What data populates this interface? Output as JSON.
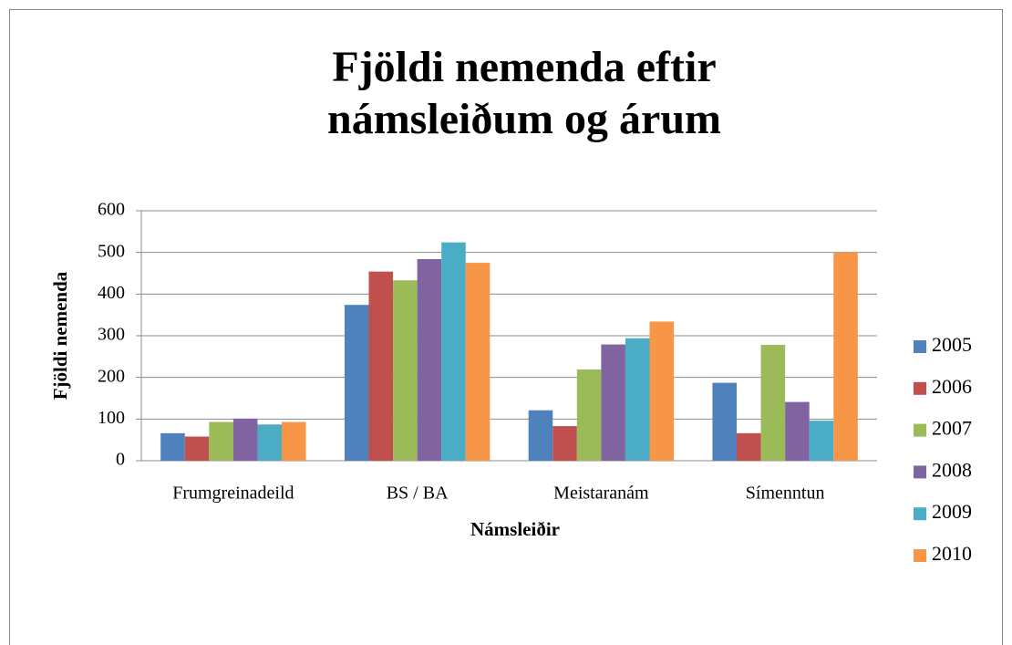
{
  "chart_data": {
    "type": "bar",
    "title": [
      "Fjöldi nemenda eftir",
      "námsleiðum og árum"
    ],
    "x_label": "Námsleiðir",
    "y_label": "Fjöldi nemenda",
    "categories": [
      "Frumgreinadeild",
      "BS / BA",
      "Meistaranám",
      "Símenntun"
    ],
    "series": [
      {
        "name": "2005",
        "color": "#4f81bd",
        "values": [
          66,
          374,
          121,
          187
        ]
      },
      {
        "name": "2006",
        "color": "#c0504d",
        "values": [
          58,
          454,
          83,
          66
        ]
      },
      {
        "name": "2007",
        "color": "#9bbb59",
        "values": [
          93,
          433,
          219,
          278
        ]
      },
      {
        "name": "2008",
        "color": "#8064a2",
        "values": [
          101,
          484,
          279,
          141
        ]
      },
      {
        "name": "2009",
        "color": "#4bacc6",
        "values": [
          87,
          524,
          294,
          96
        ]
      },
      {
        "name": "2010",
        "color": "#f79646",
        "values": [
          93,
          475,
          334,
          500
        ]
      }
    ],
    "ylim": [
      0,
      600
    ],
    "yticks": [
      0,
      100,
      200,
      300,
      400,
      500,
      600
    ],
    "grid": true,
    "legend": "right"
  }
}
